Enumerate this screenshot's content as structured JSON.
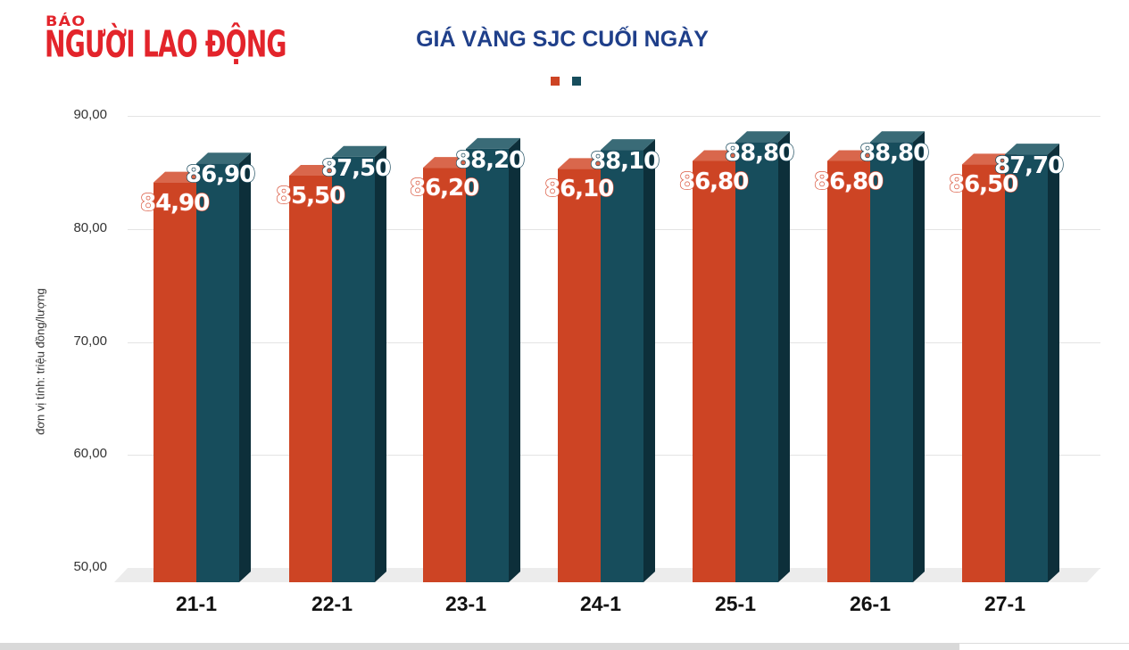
{
  "header": {
    "logo_small": "BÁO",
    "logo_big": "NGƯỜI LAO ĐỘNG",
    "title": "GIÁ VÀNG SJC CUỐI NGÀY"
  },
  "colors": {
    "series_a": "#cd4424",
    "series_a_top": "#d9674c",
    "series_a_side": "#a8321a",
    "series_b": "#174d5c",
    "series_b_top": "#3a6b77",
    "series_b_side": "#0d2f3a",
    "title": "#1f3f8a",
    "logo": "#e3242b"
  },
  "chart_data": {
    "type": "bar",
    "title": "GIÁ VÀNG SJC CUỐI NGÀY",
    "xlabel": "",
    "ylabel": "đơn vị tính: triệu đồng/lượng",
    "ylim": [
      50,
      90
    ],
    "yticks": [
      "50,00",
      "60,00",
      "70,00",
      "80,00",
      "90,00"
    ],
    "categories": [
      "21-1",
      "22-1",
      "23-1",
      "24-1",
      "25-1",
      "26-1",
      "27-1"
    ],
    "series": [
      {
        "name": "",
        "color": "#cd4424",
        "values": [
          84.9,
          85.5,
          86.2,
          86.1,
          86.8,
          86.8,
          86.5
        ],
        "labels": [
          "84,90",
          "85,50",
          "86,20",
          "86,10",
          "86,80",
          "86,80",
          "86,50"
        ]
      },
      {
        "name": "",
        "color": "#174d5c",
        "values": [
          86.9,
          87.5,
          88.2,
          88.1,
          88.8,
          88.8,
          87.7
        ],
        "labels": [
          "86,90",
          "87,50",
          "88,20",
          "88,10",
          "88,80",
          "88,80",
          "87,70"
        ]
      }
    ],
    "legend": {
      "position": "top-center",
      "entries": [
        "",
        ""
      ]
    },
    "grid": true,
    "style": "3d-column"
  }
}
